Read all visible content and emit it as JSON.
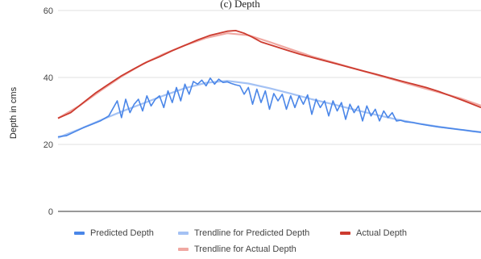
{
  "chart_data": {
    "type": "line",
    "title": "(c) Depth",
    "xlabel": "",
    "ylabel": "Depth in cms",
    "ylim": [
      0,
      60
    ],
    "yticks": [
      0,
      20,
      40,
      60
    ],
    "xlim": [
      0,
      100
    ],
    "grid": true,
    "legend_position": "bottom",
    "colors": {
      "predicted": "#4a86e8",
      "predicted_trend": "#a4c2f4",
      "actual": "#cc3b2f",
      "actual_trend": "#f0a8a2",
      "grid": "#e2e2e2",
      "axis": "#333333"
    },
    "series": [
      {
        "key": "predicted",
        "name": "Predicted Depth",
        "x": [
          0,
          2,
          4,
          6,
          8,
          10,
          12,
          14,
          15,
          16,
          17,
          18,
          19,
          20,
          21,
          22,
          23,
          24,
          25,
          26,
          27,
          28,
          29,
          30,
          31,
          32,
          33,
          34,
          35,
          36,
          37,
          38,
          39,
          40,
          41,
          42,
          43,
          44,
          45,
          46,
          47,
          48,
          49,
          50,
          51,
          52,
          53,
          54,
          55,
          56,
          57,
          58,
          59,
          60,
          61,
          62,
          63,
          64,
          65,
          66,
          67,
          68,
          69,
          70,
          71,
          72,
          73,
          74,
          75,
          76,
          77,
          78,
          79,
          80,
          81,
          82,
          84,
          86,
          88,
          90,
          92,
          94,
          96,
          98,
          100
        ],
        "values": [
          22.3,
          22.6,
          23.8,
          25.0,
          26.0,
          27.0,
          28.5,
          33.0,
          28.0,
          33.5,
          29.5,
          32.0,
          33.5,
          30.0,
          34.5,
          31.5,
          33.5,
          34.5,
          31.0,
          36.0,
          32.5,
          37.0,
          33.0,
          38.0,
          35.0,
          38.8,
          38.0,
          39.2,
          37.5,
          39.8,
          38.0,
          39.5,
          38.5,
          38.7,
          38.2,
          37.8,
          37.5,
          35.0,
          37.0,
          32.0,
          36.5,
          32.5,
          36.0,
          30.5,
          35.2,
          33.0,
          35.0,
          30.5,
          34.5,
          31.0,
          34.5,
          32.0,
          34.8,
          29.0,
          33.5,
          31.0,
          33.0,
          28.5,
          33.0,
          30.0,
          32.5,
          27.5,
          32.0,
          29.5,
          31.5,
          27.0,
          31.5,
          28.5,
          30.5,
          27.0,
          30.0,
          28.0,
          29.5,
          27.0,
          27.2,
          26.8,
          26.5,
          26.0,
          25.6,
          25.2,
          24.9,
          24.6,
          24.3,
          23.9,
          23.6
        ]
      },
      {
        "key": "predicted_trend",
        "name": "Trendline for Predicted Depth",
        "x": [
          0,
          5,
          10,
          15,
          20,
          25,
          30,
          35,
          40,
          45,
          50,
          55,
          60,
          65,
          70,
          75,
          80,
          85,
          90,
          95,
          100
        ],
        "values": [
          22.0,
          24.5,
          27.2,
          29.8,
          32.2,
          34.6,
          36.8,
          38.4,
          39.0,
          38.2,
          36.8,
          35.2,
          33.5,
          32.0,
          30.4,
          28.9,
          27.5,
          26.3,
          25.3,
          24.4,
          23.7
        ]
      },
      {
        "key": "actual",
        "name": "Actual Depth",
        "x": [
          0,
          3,
          6,
          9,
          12,
          15,
          18,
          21,
          24,
          27,
          30,
          33,
          36,
          38,
          40,
          42,
          44,
          46,
          48,
          51,
          54,
          57,
          60,
          63,
          66,
          69,
          72,
          75,
          78,
          81,
          84,
          87,
          90,
          93,
          96,
          100
        ],
        "values": [
          27.8,
          29.5,
          32.5,
          35.5,
          38.0,
          40.5,
          42.6,
          44.6,
          46.2,
          48.0,
          49.6,
          51.2,
          52.6,
          53.2,
          53.8,
          54.0,
          53.2,
          52.0,
          50.6,
          49.4,
          48.2,
          47.0,
          46.0,
          45.0,
          44.0,
          43.0,
          42.0,
          41.0,
          40.0,
          39.0,
          38.0,
          37.0,
          35.8,
          34.4,
          33.0,
          31.0
        ]
      },
      {
        "key": "actual_trend",
        "name": "Trendline for Actual Depth",
        "x": [
          0,
          5,
          10,
          15,
          20,
          25,
          30,
          35,
          40,
          45,
          50,
          55,
          60,
          65,
          70,
          75,
          80,
          85,
          90,
          95,
          100
        ],
        "values": [
          27.8,
          31.5,
          36.0,
          40.3,
          44.0,
          47.0,
          49.6,
          51.8,
          53.2,
          52.6,
          50.6,
          48.4,
          46.3,
          44.5,
          42.7,
          40.9,
          39.1,
          37.3,
          35.6,
          33.8,
          31.6
        ]
      }
    ],
    "legend": [
      {
        "key": "predicted",
        "label": "Predicted Depth"
      },
      {
        "key": "predicted_trend",
        "label": "Trendline for Predicted Depth"
      },
      {
        "key": "actual",
        "label": "Actual Depth"
      },
      {
        "key": "actual_trend",
        "label": "Trendline for Actual Depth"
      }
    ]
  }
}
